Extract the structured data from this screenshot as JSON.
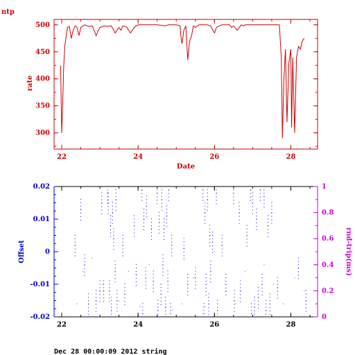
{
  "header": {
    "label": "ntp"
  },
  "footer": {
    "text": "Dec 28 00:00:09 2012 string"
  },
  "colors": {
    "rate": "#cc0000",
    "offset": "#0000cc",
    "rtt": "#cc00cc",
    "frame": "#000000"
  },
  "chart_data": [
    {
      "type": "line",
      "xlabel": "Date",
      "ylabel": "rate",
      "xlim": [
        21.8,
        28.7
      ],
      "ylim": [
        270,
        510
      ],
      "xticks": [
        "22",
        "24",
        "26",
        "28"
      ],
      "yticks": [
        "300",
        "350",
        "400",
        "450",
        "500"
      ],
      "grid": false,
      "series": [
        {
          "x": [
            21.97,
            22.0,
            22.02,
            22.05,
            22.08,
            22.12,
            22.15,
            22.2,
            22.25,
            22.3,
            22.35,
            22.4,
            22.45,
            22.5,
            22.55,
            22.6,
            22.7,
            22.8,
            22.85,
            22.9,
            22.95,
            23.0,
            23.05,
            23.1,
            23.2,
            23.3,
            23.4,
            23.5,
            23.55,
            23.6,
            23.7,
            23.8,
            23.85,
            23.9,
            23.95,
            24.0,
            24.1,
            24.3,
            24.5,
            24.7,
            24.8,
            24.9,
            25.0,
            25.1,
            25.12,
            25.15,
            25.2,
            25.25,
            25.3,
            25.35,
            25.4,
            25.45,
            25.5,
            25.55,
            25.6,
            25.7,
            25.8,
            25.9,
            26.0,
            26.05,
            26.1,
            26.2,
            26.3,
            26.4,
            26.45,
            26.5,
            26.6,
            26.7,
            26.75,
            26.8,
            26.9,
            27.0,
            27.1,
            27.2,
            27.3,
            27.4,
            27.5,
            27.6,
            27.7,
            27.75,
            27.78,
            27.82,
            27.86,
            27.9,
            27.95,
            28.0,
            28.02,
            28.05,
            28.1,
            28.15,
            28.2,
            28.25,
            28.3,
            28.35
          ],
          "values": [
            425,
            300,
            340,
            420,
            460,
            480,
            495,
            497,
            475,
            490,
            498,
            496,
            480,
            495,
            498,
            500,
            497,
            498,
            490,
            480,
            488,
            495,
            496,
            498,
            497,
            498,
            485,
            495,
            490,
            498,
            496,
            485,
            490,
            495,
            498,
            500,
            500,
            500,
            500,
            498,
            500,
            500,
            500,
            498,
            480,
            465,
            490,
            498,
            435,
            470,
            480,
            498,
            495,
            498,
            500,
            500,
            500,
            498,
            485,
            495,
            497,
            500,
            500,
            500,
            495,
            498,
            490,
            500,
            498,
            500,
            500,
            500,
            500,
            500,
            500,
            500,
            500,
            500,
            500,
            440,
            290,
            400,
            455,
            320,
            430,
            455,
            310,
            440,
            300,
            440,
            460,
            455,
            470,
            475
          ]
        }
      ]
    },
    {
      "type": "scatter",
      "xlabel": "",
      "ylabel": "Offset",
      "y2label": "rnd-trip(ms)",
      "xlim": [
        21.8,
        28.7
      ],
      "ylim": [
        -0.02,
        0.02
      ],
      "y2lim": [
        0,
        1
      ],
      "xticks": [
        "22",
        "24",
        "26",
        "28"
      ],
      "yticks": [
        "-0.02",
        "-0.01",
        "0",
        "0.01",
        "0.02"
      ],
      "y2ticks": [
        "0",
        "0.2",
        "0.4",
        "0.6",
        "0.8",
        "1"
      ],
      "grid": false,
      "series": [
        {
          "name": "",
          "x": [
            23.2,
            23.22,
            23.25,
            23.28,
            23.3,
            23.33,
            23.36,
            23.4,
            23.42,
            23.45,
            24.1,
            24.12,
            24.15,
            24.2,
            24.22,
            24.5,
            24.52,
            24.55,
            24.6,
            24.62,
            24.65,
            24.68,
            24.72,
            24.75,
            24.78,
            24.8,
            24.85,
            24.88,
            25.7,
            25.72,
            25.75,
            25.78,
            25.82,
            25.85,
            25.88,
            25.9,
            26.05,
            26.08,
            26.5,
            26.52,
            26.65,
            26.68,
            26.95,
            26.97,
            27.0,
            27.05,
            27.1,
            27.15,
            27.2,
            27.25,
            27.3,
            27.35,
            27.4,
            27.45,
            27.5,
            23.05,
            23.1,
            23.6,
            23.65,
            23.9,
            23.95,
            22.35,
            22.5,
            22.6,
            22.7,
            22.9,
            23.0,
            24.35,
            24.4,
            25.2,
            25.3,
            25.5,
            25.95,
            26.2,
            26.3,
            26.85,
            27.65,
            28.2,
            28.4
          ],
          "values": [
            0.018,
            0.015,
            -0.012,
            0.008,
            -0.018,
            0.012,
            0.004,
            -0.006,
            0.016,
            -0.015,
            0.019,
            -0.019,
            0.01,
            -0.008,
            0.014,
            0.018,
            -0.018,
            0.009,
            -0.013,
            0.016,
            -0.004,
            0.007,
            -0.017,
            0.011,
            -0.009,
            0.019,
            -0.019,
            0.002,
            0.019,
            -0.019,
            0.012,
            -0.01,
            0.016,
            -0.016,
            0.005,
            -0.006,
            0.018,
            -0.018,
            0.018,
            -0.015,
            0.012,
            -0.012,
            0.019,
            -0.019,
            0.015,
            -0.017,
            0.01,
            -0.014,
            0.019,
            -0.01,
            0.017,
            -0.018,
            0.008,
            -0.016,
            0.012,
            0.015,
            -0.012,
            0.002,
            -0.013,
            0.008,
            -0.007,
            0.002,
            0.013,
            -0.004,
            -0.016,
            -0.015,
            -0.012,
            0.007,
            -0.009,
            0.001,
            -0.01,
            -0.008,
            0.003,
            0.002,
            -0.01,
            0.005,
            -0.011,
            -0.005,
            -0.015
          ]
        },
        {
          "name": "",
          "x": [
            22.4,
            22.55,
            22.8,
            23.08,
            23.3,
            23.5,
            23.75,
            24.05,
            24.3,
            24.6,
            24.9,
            25.15,
            25.45,
            25.75,
            26.0,
            26.3,
            26.55,
            26.8,
            27.05,
            27.3,
            27.55,
            27.8,
            28.1,
            28.35
          ],
          "values": [
            0.1,
            0.35,
            0.45,
            0.25,
            0.15,
            0.12,
            0.35,
            0.08,
            0.4,
            0.25,
            0.05,
            0.1,
            0.3,
            0.08,
            0.5,
            0.2,
            0.1,
            0.35,
            0.15,
            0.4,
            0.25,
            0.1,
            0.3,
            0.2
          ]
        }
      ]
    }
  ]
}
